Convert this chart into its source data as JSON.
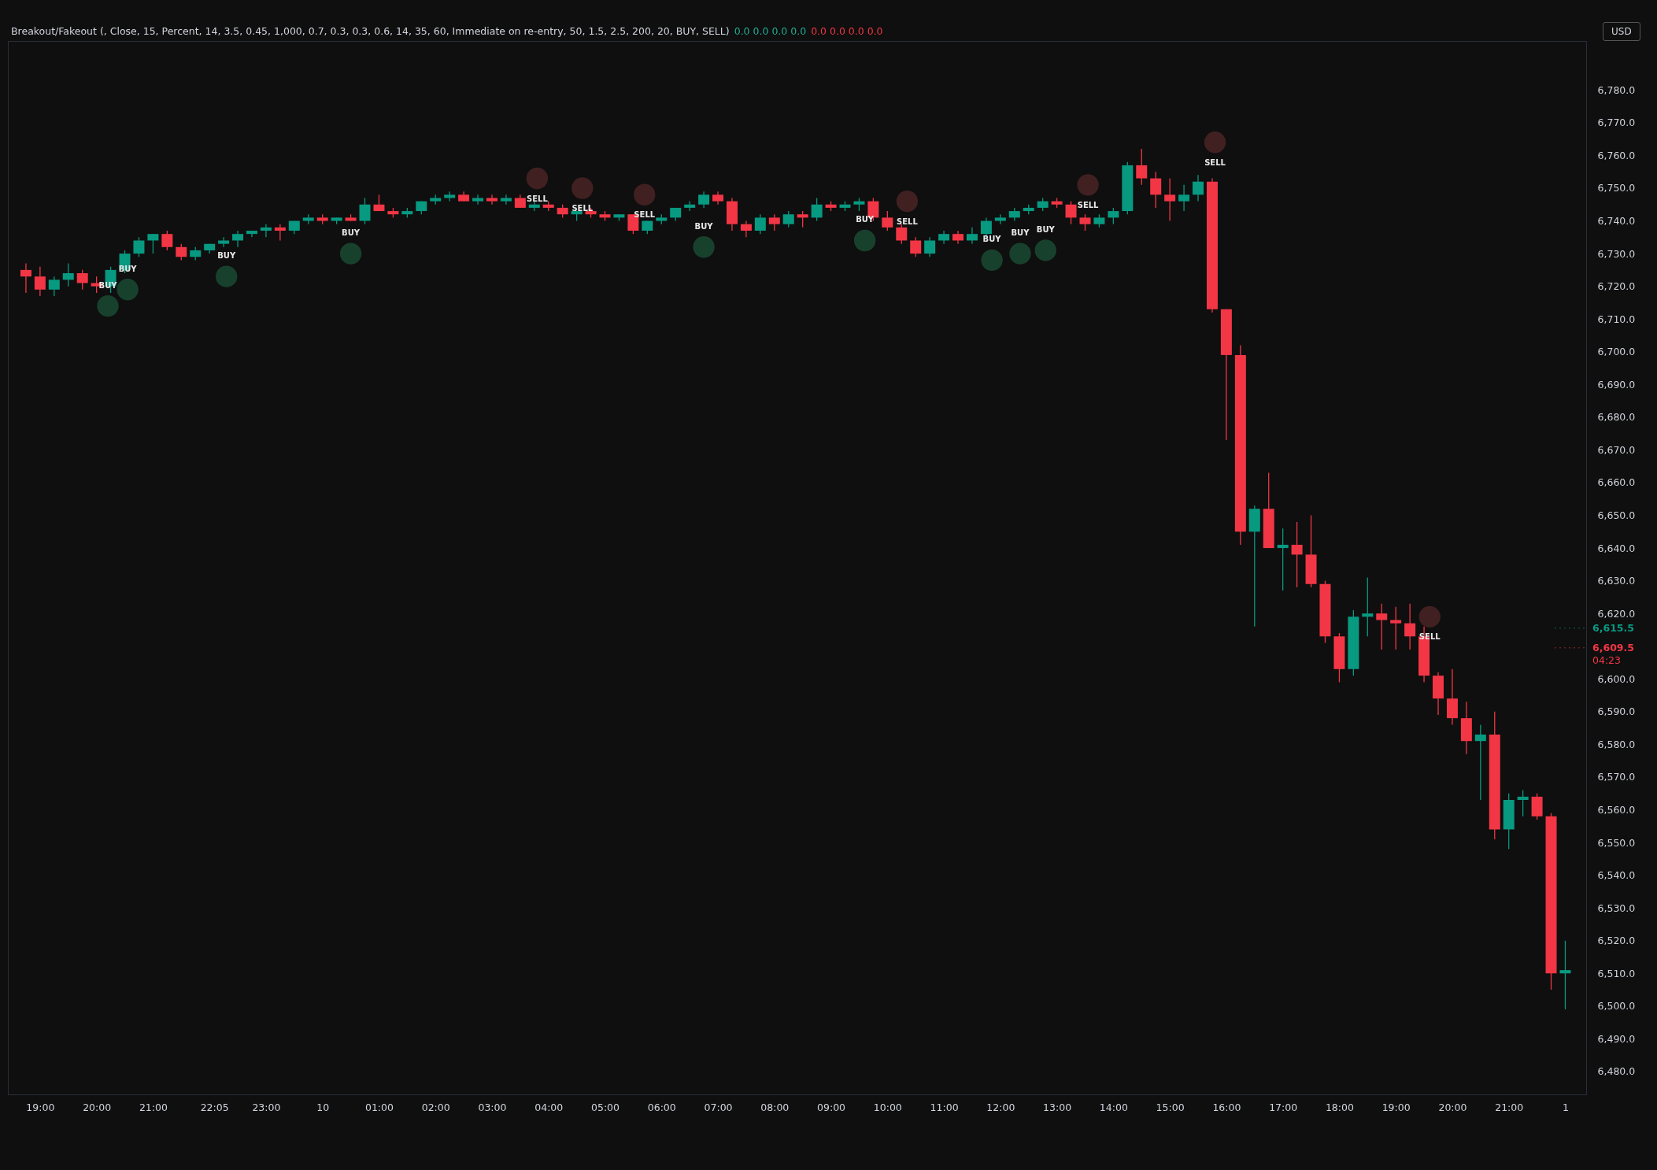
{
  "chart_data": {
    "type": "candlestick",
    "title": "Breakout/Fakeout (, Close, 15, Percent, 14, 3.5, 0.45, 1,000, 0.7, 0.3, 0.3, 0.6, 14, 35, 60, Immediate on re-entry, 50, 1.5, 2.5, 200, 20, BUY, SELL)",
    "x": [
      "--10-09T18:45",
      "--10-09T19:00",
      "--10-09T19:15",
      "--10-09T19:30",
      "--10-09T19:45",
      "--10-09T20:00",
      "--10-09T20:15",
      "--10-09T20:30",
      "--10-09T20:45",
      "--10-09T21:00",
      "--10-09T21:15",
      "--10-09T21:30",
      "--10-09T21:45",
      "--10-09T22:00",
      "--10-09T22:15",
      "--10-09T22:30",
      "--10-09T22:45",
      "--10-09T23:00",
      "--10-09T23:15",
      "--10-09T23:30",
      "--10-09T23:45",
      "--10-10T00:00",
      "--10-10T00:15",
      "--10-10T00:30",
      "--10-10T00:45",
      "--10-10T01:00",
      "--10-10T01:15",
      "--10-10T01:30",
      "--10-10T01:45",
      "--10-10T02:00",
      "--10-10T02:15",
      "--10-10T02:30",
      "--10-10T02:45",
      "--10-10T03:00",
      "--10-10T03:15",
      "--10-10T03:30",
      "--10-10T03:45",
      "--10-10T04:00",
      "--10-10T04:15",
      "--10-10T04:30",
      "--10-10T04:45",
      "--10-10T05:00",
      "--10-10T05:15",
      "--10-10T05:30",
      "--10-10T05:45",
      "--10-10T06:00",
      "--10-10T06:15",
      "--10-10T06:30",
      "--10-10T06:45",
      "--10-10T07:00",
      "--10-10T07:15",
      "--10-10T07:30",
      "--10-10T07:45",
      "--10-10T08:00",
      "--10-10T08:15",
      "--10-10T08:30",
      "--10-10T08:45",
      "--10-10T09:00",
      "--10-10T09:15",
      "--10-10T09:30",
      "--10-10T09:45",
      "--10-10T10:00",
      "--10-10T10:15",
      "--10-10T10:30",
      "--10-10T10:45",
      "--10-10T11:00",
      "--10-10T11:15",
      "--10-10T11:30",
      "--10-10T11:45",
      "--10-10T12:00",
      "--10-10T12:15",
      "--10-10T12:30",
      "--10-10T12:45",
      "--10-10T13:00",
      "--10-10T13:15",
      "--10-10T13:30",
      "--10-10T13:45",
      "--10-10T14:00",
      "--10-10T14:15",
      "--10-10T14:30",
      "--10-10T14:45",
      "--10-10T15:00",
      "--10-10T15:15",
      "--10-10T15:30",
      "--10-10T15:45",
      "--10-10T16:00",
      "--10-10T16:15",
      "--10-10T16:30",
      "--10-10T16:45",
      "--10-10T17:00",
      "--10-10T17:15",
      "--10-10T17:30",
      "--10-10T17:45",
      "--10-10T18:00",
      "--10-10T18:15",
      "--10-10T18:30",
      "--10-10T18:45",
      "--10-10T19:00",
      "--10-10T19:15",
      "--10-10T19:30",
      "--10-10T19:45",
      "--10-10T20:00",
      "--10-10T20:15",
      "--10-10T20:30",
      "--10-10T20:45",
      "--10-10T21:00",
      "--10-10T21:15",
      "--10-10T21:30",
      "--10-10T21:45",
      "--10-10T22:00"
    ],
    "ohlc": [
      [
        6725,
        6727,
        6718,
        6723
      ],
      [
        6723,
        6726,
        6717,
        6719
      ],
      [
        6719,
        6723,
        6717,
        6722
      ],
      [
        6722,
        6727,
        6720,
        6724
      ],
      [
        6724,
        6725,
        6719,
        6721
      ],
      [
        6721,
        6723,
        6718,
        6720
      ],
      [
        6720,
        6726,
        6718,
        6725
      ],
      [
        6725,
        6731,
        6724,
        6730
      ],
      [
        6730,
        6735,
        6729,
        6734
      ],
      [
        6734,
        6736,
        6730,
        6736
      ],
      [
        6736,
        6737,
        6731,
        6732
      ],
      [
        6732,
        6733,
        6728,
        6729
      ],
      [
        6729,
        6732,
        6728,
        6731
      ],
      [
        6731,
        6733,
        6730,
        6733
      ],
      [
        6733,
        6735,
        6732,
        6734
      ],
      [
        6734,
        6737,
        6732,
        6736
      ],
      [
        6736,
        6737,
        6735,
        6737
      ],
      [
        6737,
        6739,
        6735,
        6738
      ],
      [
        6738,
        6739,
        6734,
        6737
      ],
      [
        6737,
        6740,
        6736,
        6740
      ],
      [
        6740,
        6742,
        6739,
        6741
      ],
      [
        6741,
        6742,
        6739,
        6740
      ],
      [
        6740,
        6741,
        6739,
        6741
      ],
      [
        6741,
        6742,
        6740,
        6740
      ],
      [
        6740,
        6747,
        6739,
        6745
      ],
      [
        6745,
        6748,
        6743,
        6743
      ],
      [
        6743,
        6744,
        6741,
        6742
      ],
      [
        6742,
        6744,
        6741,
        6743
      ],
      [
        6743,
        6746,
        6742,
        6746
      ],
      [
        6746,
        6748,
        6745,
        6747
      ],
      [
        6747,
        6749,
        6746,
        6748
      ],
      [
        6748,
        6749,
        6746,
        6746
      ],
      [
        6746,
        6748,
        6745,
        6747
      ],
      [
        6747,
        6748,
        6745,
        6746
      ],
      [
        6746,
        6748,
        6745,
        6747
      ],
      [
        6747,
        6748,
        6744,
        6744
      ],
      [
        6744,
        6746,
        6743,
        6745
      ],
      [
        6745,
        6746,
        6743,
        6744
      ],
      [
        6744,
        6745,
        6741,
        6742
      ],
      [
        6742,
        6743,
        6740,
        6743
      ],
      [
        6743,
        6744,
        6741,
        6742
      ],
      [
        6742,
        6743,
        6740,
        6741
      ],
      [
        6741,
        6742,
        6740,
        6742
      ],
      [
        6742,
        6742,
        6736,
        6737
      ],
      [
        6737,
        6740,
        6736,
        6740
      ],
      [
        6740,
        6742,
        6739,
        6741
      ],
      [
        6741,
        6744,
        6740,
        6744
      ],
      [
        6744,
        6746,
        6743,
        6745
      ],
      [
        6745,
        6749,
        6744,
        6748
      ],
      [
        6748,
        6749,
        6745,
        6746
      ],
      [
        6746,
        6747,
        6737,
        6739
      ],
      [
        6739,
        6740,
        6735,
        6737
      ],
      [
        6737,
        6742,
        6736,
        6741
      ],
      [
        6741,
        6742,
        6737,
        6739
      ],
      [
        6739,
        6743,
        6738,
        6742
      ],
      [
        6742,
        6743,
        6738,
        6741
      ],
      [
        6741,
        6747,
        6740,
        6745
      ],
      [
        6745,
        6746,
        6743,
        6744
      ],
      [
        6744,
        6746,
        6743,
        6745
      ],
      [
        6745,
        6747,
        6743,
        6746
      ],
      [
        6746,
        6747,
        6740,
        6741
      ],
      [
        6741,
        6743,
        6737,
        6738
      ],
      [
        6738,
        6739,
        6733,
        6734
      ],
      [
        6734,
        6735,
        6729,
        6730
      ],
      [
        6730,
        6735,
        6729,
        6734
      ],
      [
        6734,
        6737,
        6733,
        6736
      ],
      [
        6736,
        6737,
        6733,
        6734
      ],
      [
        6734,
        6738,
        6733,
        6736
      ],
      [
        6736,
        6741,
        6735,
        6740
      ],
      [
        6740,
        6742,
        6739,
        6741
      ],
      [
        6741,
        6744,
        6740,
        6743
      ],
      [
        6743,
        6745,
        6742,
        6744
      ],
      [
        6744,
        6747,
        6743,
        6746
      ],
      [
        6746,
        6747,
        6744,
        6745
      ],
      [
        6745,
        6746,
        6739,
        6741
      ],
      [
        6741,
        6742,
        6737,
        6739
      ],
      [
        6739,
        6742,
        6738,
        6741
      ],
      [
        6741,
        6744,
        6739,
        6743
      ],
      [
        6743,
        6758,
        6742,
        6757
      ],
      [
        6757,
        6762,
        6751,
        6753
      ],
      [
        6753,
        6755,
        6744,
        6748
      ],
      [
        6748,
        6753,
        6740,
        6746
      ],
      [
        6746,
        6751,
        6743,
        6748
      ],
      [
        6748,
        6754,
        6746,
        6752
      ],
      [
        6752,
        6753,
        6712,
        6713
      ],
      [
        6713,
        6713,
        6673,
        6699
      ],
      [
        6699,
        6702,
        6641,
        6645
      ],
      [
        6645,
        6653,
        6616,
        6652
      ],
      [
        6652,
        6663,
        6640,
        6640
      ],
      [
        6640,
        6646,
        6627,
        6641
      ],
      [
        6641,
        6648,
        6628,
        6638
      ],
      [
        6638,
        6650,
        6628,
        6629
      ],
      [
        6629,
        6630,
        6611,
        6613
      ],
      [
        6613,
        6614,
        6599,
        6603
      ],
      [
        6603,
        6621,
        6601,
        6619
      ],
      [
        6619,
        6631,
        6613,
        6620
      ],
      [
        6620,
        6623,
        6609,
        6618
      ],
      [
        6618,
        6622,
        6609,
        6617
      ],
      [
        6617,
        6623,
        6609,
        6613
      ],
      [
        6613,
        6616,
        6599,
        6601
      ],
      [
        6601,
        6602,
        6589,
        6594
      ],
      [
        6594,
        6603,
        6586,
        6588
      ],
      [
        6588,
        6593,
        6577,
        6581
      ],
      [
        6581,
        6586,
        6563,
        6583
      ],
      [
        6583,
        6590,
        6551,
        6554
      ],
      [
        6554,
        6565,
        6548,
        6563
      ],
      [
        6563,
        6566,
        6558,
        6564
      ],
      [
        6564,
        6565,
        6557,
        6558
      ],
      [
        6558,
        6559,
        6505,
        6510
      ],
      [
        6510,
        6520,
        6499,
        6511
      ]
    ],
    "colors": [
      "#f23645",
      "#f23645",
      "#089981",
      "#089981",
      "#f23645",
      "#f23645",
      "#089981",
      "#089981",
      "#089981",
      "#089981",
      "#f23645",
      "#f23645",
      "#089981",
      "#089981",
      "#089981",
      "#089981",
      "#089981",
      "#089981",
      "#f23645",
      "#089981",
      "#089981",
      "#f23645",
      "#089981",
      "#f23645",
      "#089981",
      "#f23645",
      "#f23645",
      "#089981",
      "#089981",
      "#089981",
      "#089981",
      "#f23645",
      "#089981",
      "#f23645",
      "#089981",
      "#f23645",
      "#089981",
      "#f23645",
      "#f23645",
      "#089981",
      "#f23645",
      "#f23645",
      "#089981",
      "#f23645",
      "#089981",
      "#089981",
      "#089981",
      "#089981",
      "#089981",
      "#f23645",
      "#f23645",
      "#f23645",
      "#089981",
      "#f23645",
      "#089981",
      "#f23645",
      "#089981",
      "#f23645",
      "#089981",
      "#089981",
      "#f23645",
      "#f23645",
      "#f23645",
      "#f23645",
      "#089981",
      "#089981",
      "#f23645",
      "#089981",
      "#089981",
      "#089981",
      "#089981",
      "#089981",
      "#089981",
      "#f23645",
      "#f23645",
      "#f23645",
      "#089981",
      "#089981",
      "#089981",
      "#f23645",
      "#f23645",
      "#f23645",
      "#089981",
      "#089981",
      "#f23645",
      "#f23645",
      "#f23645",
      "#089981",
      "#f23645",
      "#089981",
      "#f23645",
      "#f23645",
      "#f23645",
      "#f23645",
      "#089981",
      "#089981",
      "#f23645",
      "#f23645",
      "#f23645",
      "#f23645",
      "#f23645",
      "#f23645",
      "#f23645",
      "#089981",
      "#f23645",
      "#089981",
      "#089981",
      "#f23645",
      "#f23645",
      "#089981"
    ],
    "series": [
      {
        "type": "scatter",
        "color": "#1a4a33",
        "x": [
          "--10-09T20:12",
          "--10-09T20:33",
          "--10-09T22:18",
          "--10-10T00:30",
          "--10-10T06:45",
          "--10-10T09:36",
          "--10-10T11:51",
          "--10-10T12:21",
          "--10-10T12:48"
        ],
        "values": [
          6714,
          6719,
          6723,
          6730,
          6732,
          6734,
          6728,
          6730,
          6731
        ]
      },
      {
        "type": "scatter",
        "color": "#4a2324",
        "x": [
          "--10-10T03:48",
          "--10-10T04:36",
          "--10-10T05:42",
          "--10-10T10:21",
          "--10-10T13:33",
          "--10-10T15:48",
          "--10-10T19:36"
        ],
        "values": [
          6753,
          6750,
          6748,
          6746,
          6751,
          6764,
          6619
        ]
      }
    ],
    "marker": "circle",
    "xlim": [
      "--10-09T18:30",
      "--10-10T22:18"
    ],
    "xticks": [
      {
        "value": "--10-09T19:00",
        "label": "19:00"
      },
      {
        "value": "--10-09T20:00",
        "label": "20:00"
      },
      {
        "value": "--10-09T21:00",
        "label": "21:00"
      },
      {
        "value": "--10-09T22:05",
        "label": "22:05"
      },
      {
        "value": "--10-09T23:00",
        "label": "23:00"
      },
      {
        "value": "--10-10T00:00",
        "label": "10"
      },
      {
        "value": "--10-10T01:00",
        "label": "01:00"
      },
      {
        "value": "--10-10T02:00",
        "label": "02:00"
      },
      {
        "value": "--10-10T03:00",
        "label": "03:00"
      },
      {
        "value": "--10-10T04:00",
        "label": "04:00"
      },
      {
        "value": "--10-10T05:00",
        "label": "05:00"
      },
      {
        "value": "--10-10T06:00",
        "label": "06:00"
      },
      {
        "value": "--10-10T07:00",
        "label": "07:00"
      },
      {
        "value": "--10-10T08:00",
        "label": "08:00"
      },
      {
        "value": "--10-10T09:00",
        "label": "09:00"
      },
      {
        "value": "--10-10T10:00",
        "label": "10:00"
      },
      {
        "value": "--10-10T11:00",
        "label": "11:00"
      },
      {
        "value": "--10-10T12:00",
        "label": "12:00"
      },
      {
        "value": "--10-10T13:00",
        "label": "13:00"
      },
      {
        "value": "--10-10T14:00",
        "label": "14:00"
      },
      {
        "value": "--10-10T15:00",
        "label": "15:00"
      },
      {
        "value": "--10-10T16:00",
        "label": "16:00"
      },
      {
        "value": "--10-10T17:00",
        "label": "17:00"
      },
      {
        "value": "--10-10T18:00",
        "label": "18:00"
      },
      {
        "value": "--10-10T19:00",
        "label": "19:00"
      },
      {
        "value": "--10-10T20:00",
        "label": "20:00"
      },
      {
        "value": "--10-10T21:00",
        "label": "21:00"
      },
      {
        "value": "--10-10T22:00",
        "label": "1"
      }
    ],
    "ylim": [
      6473,
      6795
    ],
    "yticks": [
      {
        "value": 6480,
        "label": "6,480.0"
      },
      {
        "value": 6490,
        "label": "6,490.0"
      },
      {
        "value": 6500,
        "label": "6,500.0"
      },
      {
        "value": 6510,
        "label": "6,510.0"
      },
      {
        "value": 6520,
        "label": "6,520.0"
      },
      {
        "value": 6530,
        "label": "6,530.0"
      },
      {
        "value": 6540,
        "label": "6,540.0"
      },
      {
        "value": 6550,
        "label": "6,550.0"
      },
      {
        "value": 6560,
        "label": "6,560.0"
      },
      {
        "value": 6570,
        "label": "6,570.0"
      },
      {
        "value": 6580,
        "label": "6,580.0"
      },
      {
        "value": 6590,
        "label": "6,590.0"
      },
      {
        "value": 6600,
        "label": "6,600.0"
      },
      {
        "value": 6620,
        "label": "6,620.0"
      },
      {
        "value": 6630,
        "label": "6,630.0"
      },
      {
        "value": 6640,
        "label": "6,640.0"
      },
      {
        "value": 6650,
        "label": "6,650.0"
      },
      {
        "value": 6660,
        "label": "6,660.0"
      },
      {
        "value": 6670,
        "label": "6,670.0"
      },
      {
        "value": 6680,
        "label": "6,680.0"
      },
      {
        "value": 6690,
        "label": "6,690.0"
      },
      {
        "value": 6700,
        "label": "6,700.0"
      },
      {
        "value": 6710,
        "label": "6,710.0"
      },
      {
        "value": 6720,
        "label": "6,720.0"
      },
      {
        "value": 6730,
        "label": "6,730.0"
      },
      {
        "value": 6740,
        "label": "6,740.0"
      },
      {
        "value": 6750,
        "label": "6,750.0"
      },
      {
        "value": 6760,
        "label": "6,760.0"
      },
      {
        "value": 6770,
        "label": "6,770.0"
      },
      {
        "value": 6780,
        "label": "6,780.0"
      }
    ],
    "ref_lines": [
      {
        "axis": "y",
        "value": 6615.5,
        "label": "6,615.5",
        "color": "#089981"
      },
      {
        "axis": "y",
        "value": 6609.5,
        "label": "6,609.5",
        "color": "#f23645"
      }
    ],
    "annotations": [
      "0.0 0.0 0.0 0.0",
      "0.0 0.0 0.0 0.0",
      "USD",
      "04:23",
      {
        "text": "BUY",
        "x": "--10-09T20:12",
        "y": 6714
      },
      {
        "text": "BUY",
        "x": "--10-09T20:33",
        "y": 6719
      },
      {
        "text": "BUY",
        "x": "--10-09T22:18",
        "y": 6723
      },
      {
        "text": "BUY",
        "x": "--10-10T00:30",
        "y": 6730
      },
      {
        "text": "BUY",
        "x": "--10-10T06:45",
        "y": 6732
      },
      {
        "text": "BUY",
        "x": "--10-10T09:36",
        "y": 6734
      },
      {
        "text": "BUY",
        "x": "--10-10T11:51",
        "y": 6728
      },
      {
        "text": "BUY",
        "x": "--10-10T12:21",
        "y": 6730
      },
      {
        "text": "BUY",
        "x": "--10-10T12:48",
        "y": 6731
      },
      {
        "text": "SELL",
        "x": "--10-10T03:48",
        "y": 6753
      },
      {
        "text": "SELL",
        "x": "--10-10T04:36",
        "y": 6750
      },
      {
        "text": "SELL",
        "x": "--10-10T05:42",
        "y": 6748
      },
      {
        "text": "SELL",
        "x": "--10-10T10:21",
        "y": 6746
      },
      {
        "text": "SELL",
        "x": "--10-10T13:33",
        "y": 6751
      },
      {
        "text": "SELL",
        "x": "--10-10T15:48",
        "y": 6764
      },
      {
        "text": "SELL",
        "x": "--10-10T19:36",
        "y": 6619
      }
    ],
    "grid": false
  }
}
